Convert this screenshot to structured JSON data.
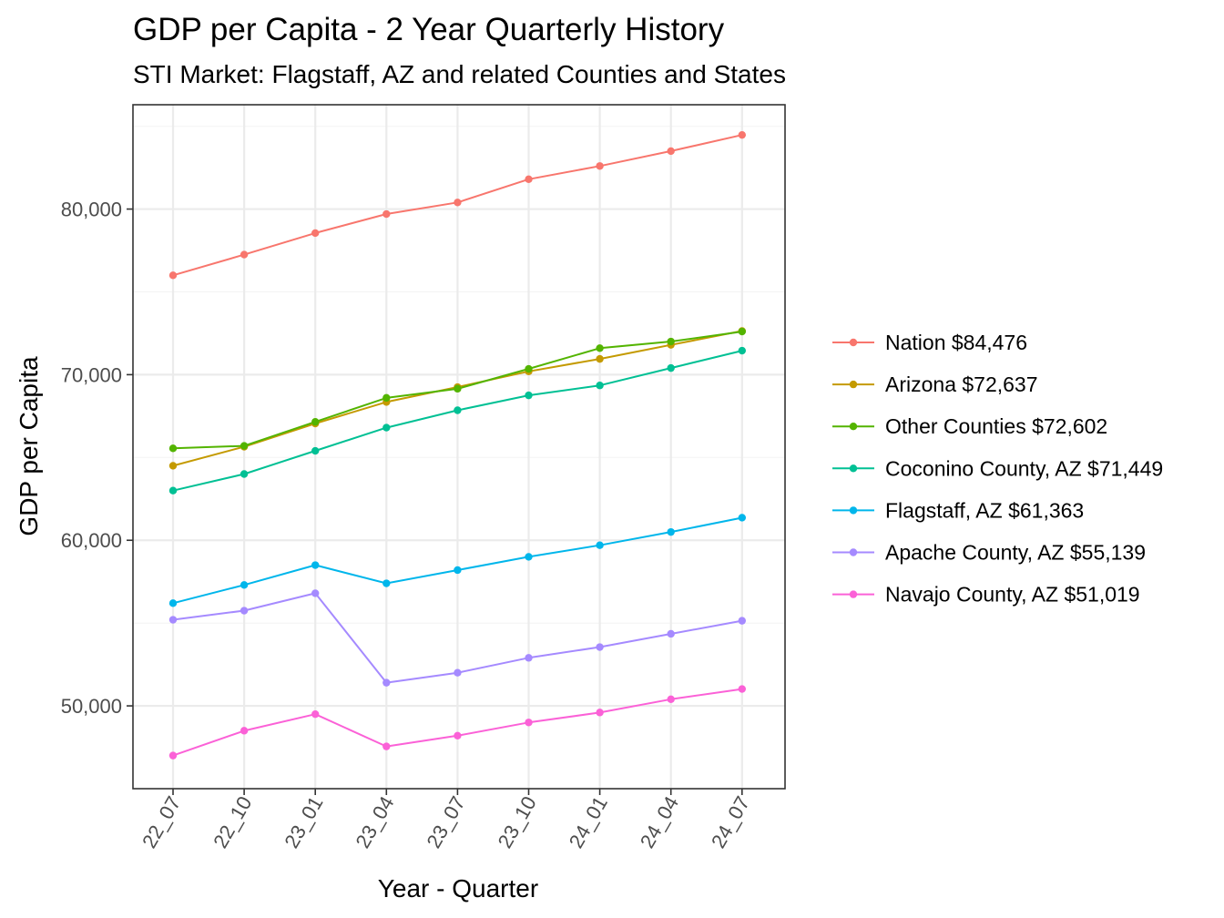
{
  "chart_data": {
    "type": "line",
    "title": "GDP per Capita - 2 Year Quarterly History",
    "subtitle": "STI Market: Flagstaff, AZ and related Counties and States",
    "xlabel": "Year - Quarter",
    "ylabel": "GDP per Capita",
    "categories": [
      "22_07",
      "22_10",
      "23_01",
      "23_04",
      "23_07",
      "23_10",
      "24_01",
      "24_04",
      "24_07"
    ],
    "ylim": [
      45000,
      86300
    ],
    "yticks": [
      50000,
      60000,
      70000,
      80000
    ],
    "ytick_labels": [
      "50,000",
      "60,000",
      "70,000",
      "80,000"
    ],
    "grid": true,
    "legend_position": "right",
    "series": [
      {
        "name": "Nation $84,476",
        "color": "#F8766D",
        "values": [
          76000,
          77250,
          78550,
          79700,
          80400,
          81800,
          82600,
          83500,
          84476
        ]
      },
      {
        "name": "Arizona $72,637",
        "color": "#C49A00",
        "values": [
          64500,
          65650,
          67050,
          68350,
          69250,
          70200,
          70950,
          71800,
          72637
        ]
      },
      {
        "name": "Other Counties $72,602",
        "color": "#53B400",
        "values": [
          65550,
          65700,
          67150,
          68600,
          69150,
          70350,
          71600,
          72000,
          72602
        ]
      },
      {
        "name": "Coconino County, AZ $71,449",
        "color": "#00C094",
        "values": [
          63000,
          64000,
          65400,
          66800,
          67850,
          68750,
          69350,
          70400,
          71449
        ]
      },
      {
        "name": "Flagstaff, AZ $61,363",
        "color": "#00B6EB",
        "values": [
          56200,
          57300,
          58500,
          57400,
          58200,
          59000,
          59700,
          60500,
          61363
        ]
      },
      {
        "name": "Apache County, AZ $55,139",
        "color": "#A58AFF",
        "values": [
          55200,
          55750,
          56800,
          51400,
          52000,
          52900,
          53550,
          54350,
          55139
        ]
      },
      {
        "name": "Navajo County, AZ $51,019",
        "color": "#FB61D7",
        "values": [
          47000,
          48500,
          49500,
          47550,
          48200,
          49000,
          49600,
          50400,
          51019
        ]
      }
    ]
  }
}
